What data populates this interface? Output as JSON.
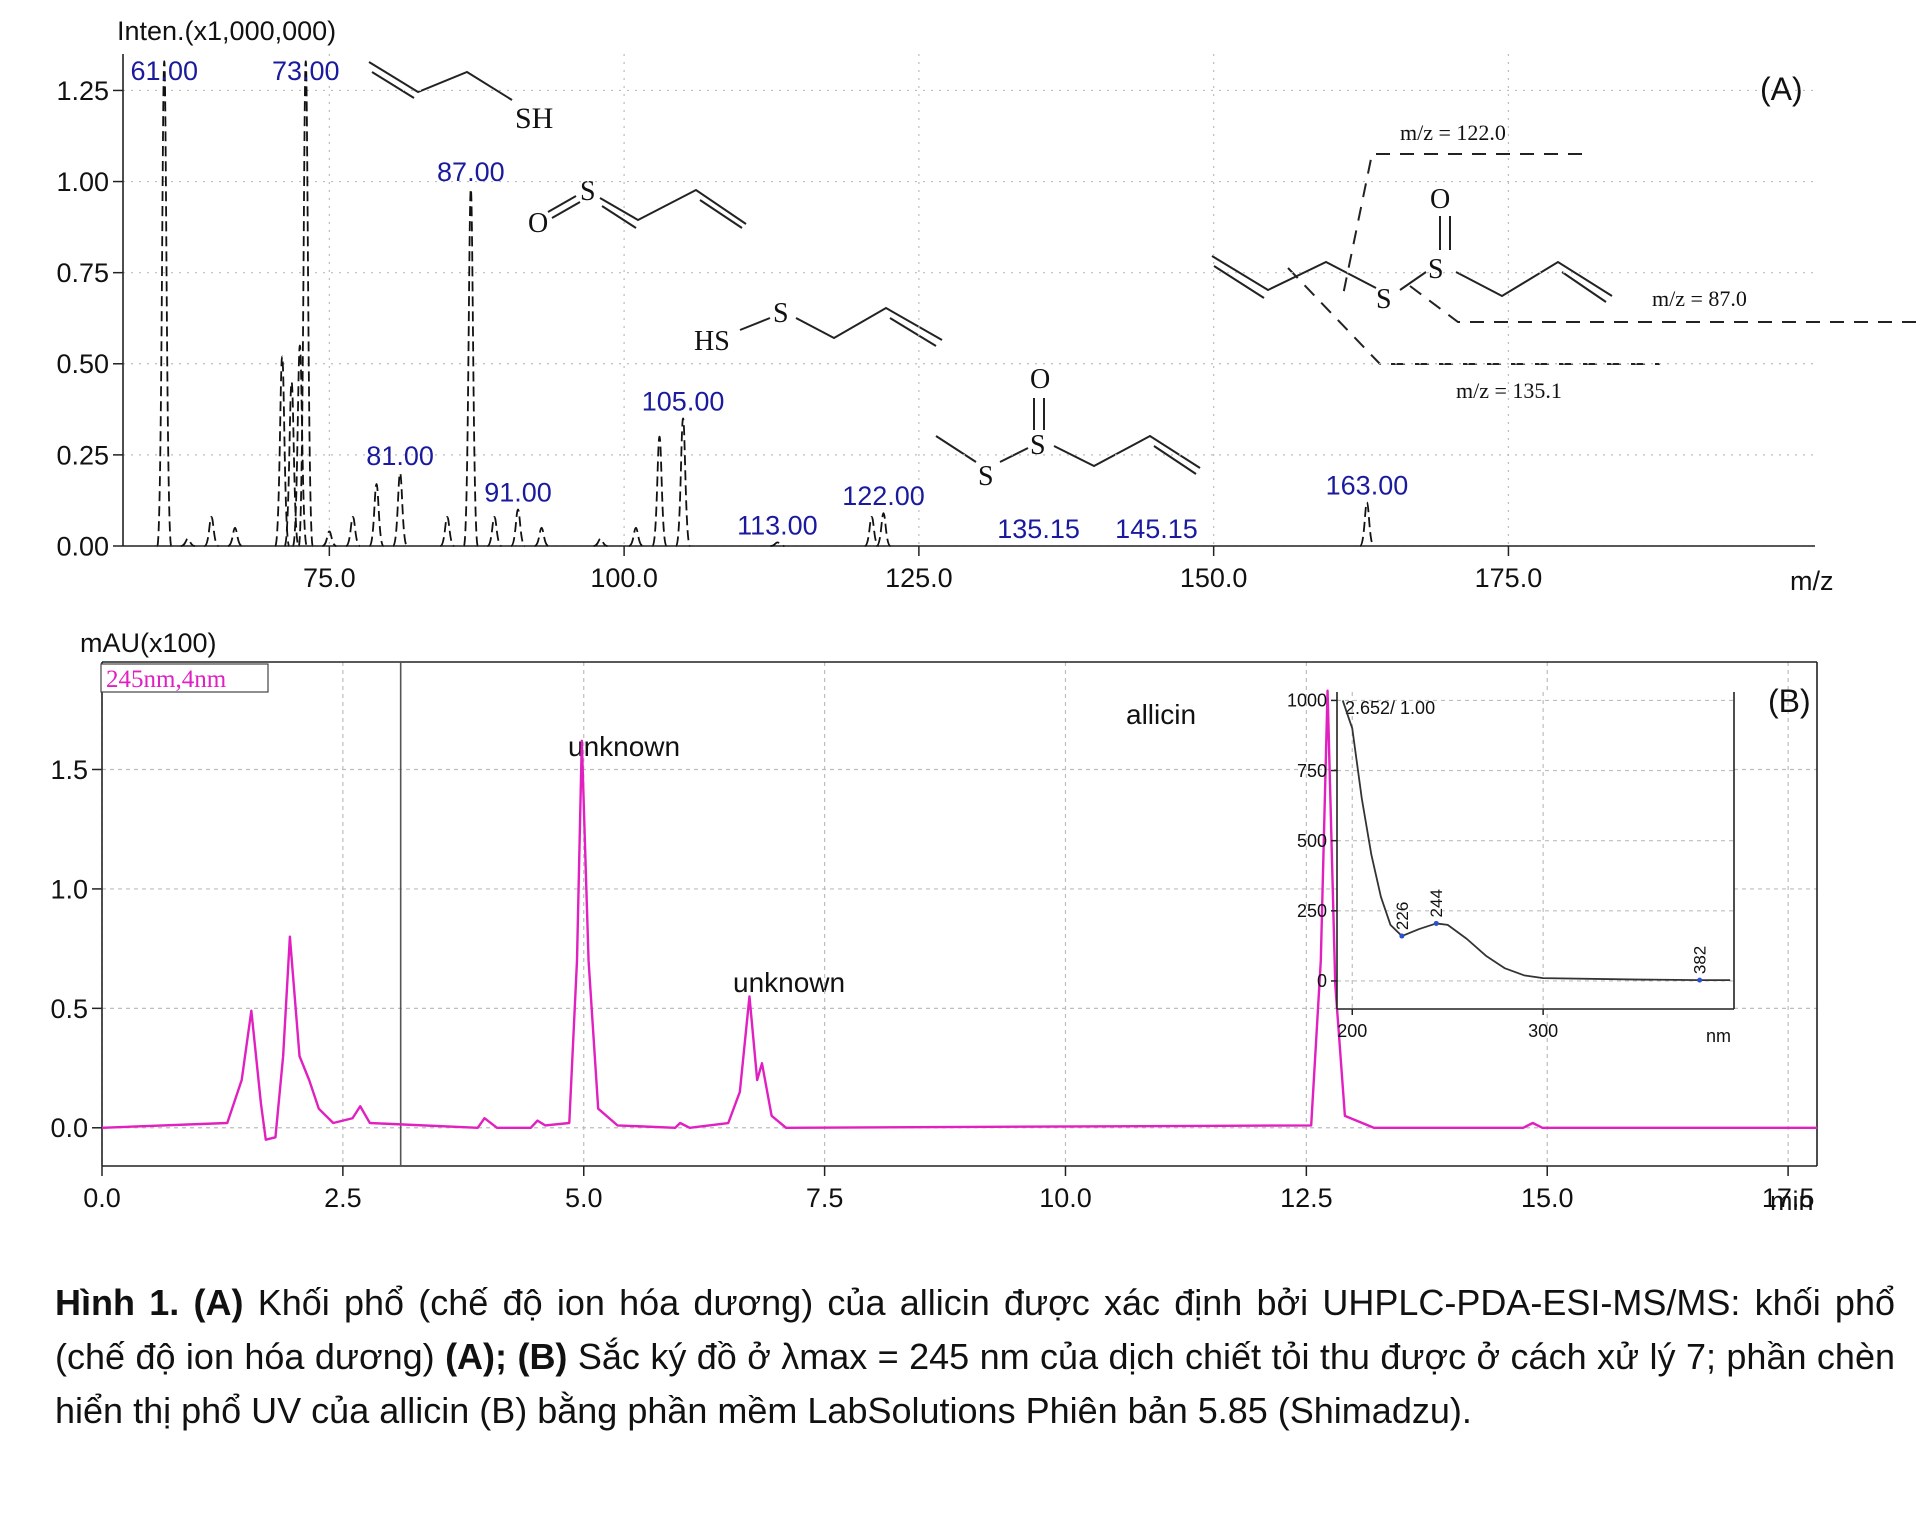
{
  "chart_data": [
    {
      "type": "stem",
      "panel": "(A)",
      "y_label": "Inten.(x1,000,000)",
      "x_label": "m/z",
      "color": "#111111",
      "label_color": "#1a1a9e",
      "xlim": [
        57.5,
        201
      ],
      "ylim": [
        0,
        1.35
      ],
      "xticks": [
        {
          "value": 75,
          "label": "75.0"
        },
        {
          "value": 100,
          "label": "100.0"
        },
        {
          "value": 125,
          "label": "125.0"
        },
        {
          "value": 150,
          "label": "150.0"
        },
        {
          "value": 175,
          "label": "175.0"
        }
      ],
      "yticks": [
        {
          "value": 0,
          "label": "0.00"
        },
        {
          "value": 0.25,
          "label": "0.25"
        },
        {
          "value": 0.5,
          "label": "0.50"
        },
        {
          "value": 0.75,
          "label": "0.75"
        },
        {
          "value": 1,
          "label": "1.00"
        },
        {
          "value": 1.25,
          "label": "1.25"
        }
      ],
      "grid": true,
      "x": [
        61,
        63,
        65,
        67,
        71,
        71.8,
        72.5,
        73,
        75,
        77,
        79,
        81,
        85,
        87,
        89,
        91,
        93,
        98,
        101,
        103,
        105,
        113,
        121,
        122,
        163
      ],
      "values": [
        1.33,
        0.02,
        0.08,
        0.05,
        0.52,
        0.45,
        0.55,
        1.33,
        0.04,
        0.08,
        0.17,
        0.2,
        0.08,
        0.98,
        0.08,
        0.1,
        0.05,
        0.02,
        0.05,
        0.3,
        0.35,
        0.01,
        0.08,
        0.09,
        0.12
      ],
      "peak_labels": [
        {
          "value": 61,
          "label": "61.00"
        },
        {
          "value": 73,
          "label": "73.00"
        },
        {
          "value": 81,
          "label": "81.00"
        },
        {
          "value": 87,
          "label": "87.00"
        },
        {
          "value": 91,
          "label": "91.00"
        },
        {
          "value": 105,
          "label": "105.00"
        },
        {
          "value": 113,
          "label": "113.00"
        },
        {
          "value": 122,
          "label": "122.00"
        },
        135.15,
        145.15,
        {
          "value": 163,
          "label": "163.00"
        }
      ],
      "annotations": [
        "SH",
        "O",
        "S",
        "HS",
        "S",
        "O",
        "S",
        "S",
        "O",
        "S",
        "S",
        "m/z = 122.0",
        "m/z = 87.0",
        "m/z = 135.1"
      ]
    },
    {
      "type": "line",
      "panel": "(B)",
      "y_label": "mAU(x100)",
      "x_label": "min",
      "xlim": [
        0,
        17.8
      ],
      "ylim": [
        -0.16,
        1.95
      ],
      "xticks": [
        {
          "value": 0,
          "label": "0.0"
        },
        2.5,
        {
          "value": 5,
          "label": "5.0"
        },
        7.5,
        {
          "value": 10,
          "label": "10.0"
        },
        12.5,
        {
          "value": 15,
          "label": "15.0"
        },
        17.5
      ],
      "yticks": [
        {
          "value": 0,
          "label": "0.0"
        },
        0.5,
        {
          "value": 1,
          "label": "1.0"
        },
        1.5
      ],
      "grid": true,
      "cursor": 3.1,
      "series": [
        {
          "name": "245nm,4nm",
          "color": "#e020c0",
          "x": [
            0,
            1.3,
            1.45,
            1.55,
            1.65,
            1.7,
            1.8,
            1.88,
            1.95,
            2.05,
            2.15,
            2.25,
            2.4,
            2.6,
            2.68,
            2.78,
            3.9,
            3.97,
            4.1,
            4.45,
            4.52,
            4.6,
            4.85,
            4.93,
            4.98,
            5.05,
            5.15,
            5.35,
            5.95,
            6.0,
            6.1,
            6.5,
            6.62,
            6.72,
            6.8,
            6.85,
            6.95,
            7.1,
            12.55,
            12.65,
            12.72,
            12.8,
            12.9,
            13.2,
            14.75,
            14.85,
            14.95,
            17.8
          ],
          "values": [
            0,
            0.02,
            0.2,
            0.49,
            0.1,
            -0.05,
            -0.04,
            0.3,
            0.8,
            0.3,
            0.2,
            0.08,
            0.02,
            0.04,
            0.09,
            0.02,
            0,
            0.04,
            0,
            0,
            0.03,
            0.01,
            0.02,
            0.7,
            1.62,
            0.7,
            0.08,
            0.01,
            0,
            0.02,
            0,
            0.02,
            0.15,
            0.55,
            0.2,
            0.27,
            0.05,
            0,
            0.01,
            0.7,
            1.83,
            0.6,
            0.05,
            0,
            0,
            0.02,
            0,
            0
          ]
        }
      ],
      "annotations": [
        "unknown",
        "unknown",
        "allicin"
      ]
    },
    {
      "type": "line",
      "x_label": "nm",
      "label": "2.652/ 1.00",
      "xlim": [
        192,
        400
      ],
      "ylim": [
        -100,
        1030
      ],
      "xticks": [
        200,
        300
      ],
      "yticks": [
        0,
        250,
        500,
        750,
        1000
      ],
      "grid": true,
      "marked_x": [
        226,
        244,
        382
      ],
      "series": [
        {
          "color": "#333333",
          "x": [
            195,
            200,
            205,
            210,
            215,
            220,
            226,
            235,
            244,
            250,
            260,
            270,
            280,
            290,
            300,
            350,
            382,
            398
          ],
          "values": [
            1000,
            900,
            650,
            450,
            300,
            200,
            160,
            185,
            205,
            200,
            150,
            90,
            45,
            20,
            10,
            5,
            3,
            3
          ]
        }
      ]
    }
  ],
  "caption": {
    "parts": [
      {
        "text": "Hình 1. (A)",
        "bold": true
      },
      {
        "text": " Khối phổ (chế độ ion hóa dương) của allicin được xác định bởi UHPLC-PDA-ESI-MS/MS: khối phổ (chế độ ion hóa dương) "
      },
      {
        "text": "(A); (B)",
        "bold": true
      },
      {
        "text": " Sắc ký đồ ở λmax = 245 nm của dịch chiết tỏi thu được ở cách xử lý 7; phần chèn hiển thị phổ UV của allicin (B) bằng phần mềm LabSolutions Phiên bản 5.85 (Shimadzu)."
      }
    ]
  }
}
